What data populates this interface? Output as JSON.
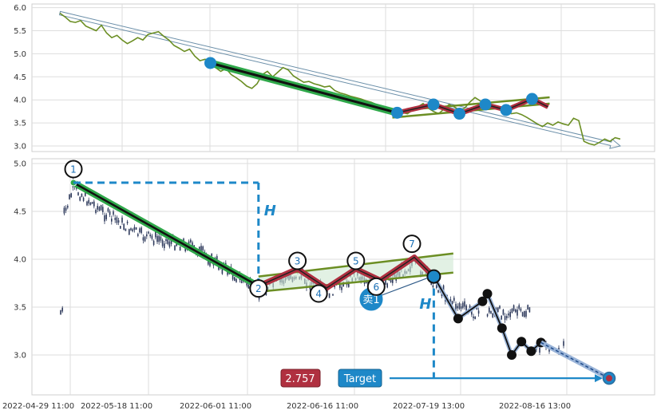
{
  "chart_data": [
    {
      "type": "line",
      "panel": "overview",
      "ylim": [
        2.95,
        6.05
      ],
      "y_ticks": [
        "6.0",
        "5.5",
        "5.0",
        "4.5",
        "4.0",
        "3.5",
        "3.0"
      ],
      "grid": true,
      "series": [
        {
          "kind": "price",
          "color": "#6b8e23",
          "y": [
            5.88,
            5.8,
            5.7,
            5.68,
            5.72,
            5.6,
            5.55,
            5.5,
            5.62,
            5.45,
            5.35,
            5.4,
            5.3,
            5.22,
            5.28,
            5.35,
            5.3,
            5.42,
            5.45,
            5.48,
            5.38,
            5.3,
            5.18,
            5.12,
            5.05,
            5.1,
            4.95,
            4.85,
            4.88,
            4.8,
            4.7,
            4.62,
            4.68,
            4.55,
            4.48,
            4.4,
            4.3,
            4.25,
            4.35,
            4.55,
            4.62,
            4.5,
            4.6,
            4.7,
            4.65,
            4.52,
            4.45,
            4.38,
            4.4,
            4.35,
            4.32,
            4.28,
            4.3,
            4.2,
            4.15,
            4.12,
            4.08,
            4.05,
            4.02,
            3.98,
            3.95,
            3.9,
            3.86,
            3.82,
            3.78,
            3.75,
            3.72,
            3.7,
            3.78,
            3.85,
            3.92,
            3.82,
            3.75,
            3.7,
            3.8,
            3.9,
            3.85,
            3.78,
            3.82,
            3.95,
            4.05,
            3.98,
            3.9,
            3.85,
            3.82,
            3.8,
            3.75,
            3.7,
            3.72,
            3.68,
            3.62,
            3.55,
            3.48,
            3.42,
            3.5,
            3.45,
            3.52,
            3.48,
            3.45,
            3.6,
            3.55,
            3.1,
            3.05,
            3.02,
            3.08,
            3.15,
            3.1,
            3.18,
            3.15
          ]
        }
      ],
      "trend_arrow": {
        "from": [
          0,
          5.88
        ],
        "to": [
          108,
          3.0
        ]
      },
      "pattern_points": [
        {
          "x": 29,
          "y": 4.8
        },
        {
          "x": 65,
          "y": 3.72
        },
        {
          "x": 72,
          "y": 3.9
        },
        {
          "x": 77,
          "y": 3.7
        },
        {
          "x": 82,
          "y": 3.9
        },
        {
          "x": 86,
          "y": 3.78
        },
        {
          "x": 91,
          "y": 4.02
        }
      ]
    },
    {
      "type": "candlestick",
      "panel": "detail",
      "ylim": [
        2.6,
        5.05
      ],
      "y_ticks": [
        "5.0",
        "4.5",
        "4.0",
        "3.5",
        "3.0"
      ],
      "x_ticks": [
        "2022-04-29 11:00",
        "2022-05-18 11:00",
        "2022-06-01 11:00",
        "2022-06-16 11:00",
        "2022-07-19 13:00",
        "2022-08-16 13:00"
      ],
      "grid": true,
      "candle_color": "#2e3a5c",
      "points": [
        {
          "label": "1",
          "x": 0,
          "y": 4.8
        },
        {
          "label": "2",
          "x": 38,
          "y": 3.72
        },
        {
          "label": "3",
          "x": 46,
          "y": 3.9
        },
        {
          "label": "4",
          "x": 52,
          "y": 3.7
        },
        {
          "label": "5",
          "x": 58,
          "y": 3.9
        },
        {
          "label": "6",
          "x": 63,
          "y": 3.78
        },
        {
          "label": "7",
          "x": 70,
          "y": 4.02
        }
      ],
      "breakout": {
        "x": 74,
        "y": 3.82
      },
      "projection_path": [
        {
          "x": 74,
          "y": 3.82
        },
        {
          "x": 79,
          "y": 3.38
        },
        {
          "x": 84,
          "y": 3.56
        },
        {
          "x": 85,
          "y": 3.64
        },
        {
          "x": 88,
          "y": 3.28
        },
        {
          "x": 90,
          "y": 3.0
        },
        {
          "x": 92,
          "y": 3.14
        },
        {
          "x": 94,
          "y": 3.04
        },
        {
          "x": 96,
          "y": 3.13
        }
      ],
      "target_point": {
        "x": 110,
        "y": 2.757
      },
      "measure_label": "H",
      "sell_marker": "卖1",
      "target_value": "2.757",
      "target_label": "Target"
    }
  ]
}
